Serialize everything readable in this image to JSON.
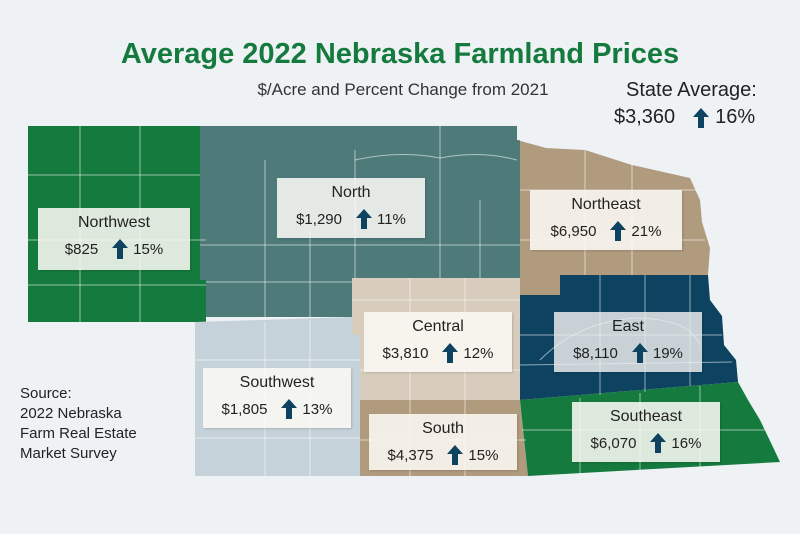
{
  "title": "Average 2022 Nebraska Farmland Prices",
  "subtitle": "$/Acre and Percent Change from 2021",
  "state_average": {
    "label": "State Average:",
    "value": "$3,360",
    "change": "16%"
  },
  "regions": [
    {
      "key": "northwest",
      "name": "Northwest",
      "value": "$825",
      "change": "15%",
      "color": "#157a3e"
    },
    {
      "key": "north",
      "name": "North",
      "value": "$1,290",
      "change": "11%",
      "color": "#4f7a7a"
    },
    {
      "key": "northeast",
      "name": "Northeast",
      "value": "$6,950",
      "change": "21%",
      "color": "#b09b7e"
    },
    {
      "key": "central",
      "name": "Central",
      "value": "$3,810",
      "change": "12%",
      "color": "#d8ccbc"
    },
    {
      "key": "east",
      "name": "East",
      "value": "$8,110",
      "change": "19%",
      "color": "#0d4361"
    },
    {
      "key": "southwest",
      "name": "Southwest",
      "value": "$1,805",
      "change": "13%",
      "color": "#c5d2da"
    },
    {
      "key": "south",
      "name": "South",
      "value": "$4,375",
      "change": "15%",
      "color": "#b09b7e"
    },
    {
      "key": "southeast",
      "name": "Southeast",
      "value": "$6,070",
      "change": "16%",
      "color": "#157a3e"
    }
  ],
  "arrow_icon": "up-arrow-icon",
  "arrow_color": "#0d4361",
  "source": [
    "Source:",
    "2022 Nebraska",
    "Farm Real Estate",
    "Market Survey"
  ]
}
